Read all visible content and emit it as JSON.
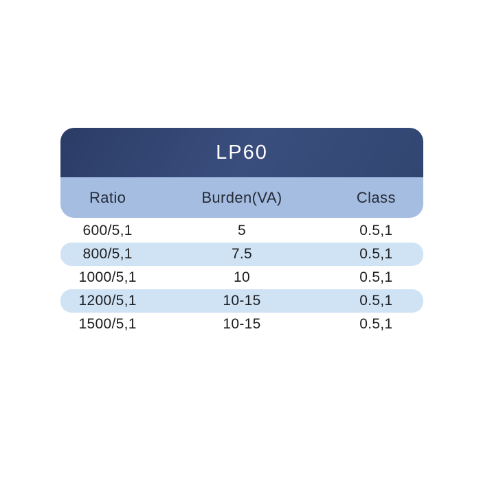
{
  "table": {
    "title": "LP60",
    "columns": [
      "Ratio",
      "Burden(VA)",
      "Class"
    ],
    "rows": [
      [
        "600/5,1",
        "5",
        "0.5,1"
      ],
      [
        "800/5,1",
        "7.5",
        "0.5,1"
      ],
      [
        "1000/5,1",
        "10",
        "0.5,1"
      ],
      [
        "1200/5,1",
        "10-15",
        "0.5,1"
      ],
      [
        "1500/5,1",
        "10-15",
        "0.5,1"
      ]
    ]
  },
  "colors": {
    "page_bg": "#ffffff",
    "header_gradient_start": "#2b3c66",
    "header_gradient_mid": "#3a4e7e",
    "header_gradient_end": "#324672",
    "subheader_bg": "#a6bde2",
    "stripe_bg": "#cfe3f5",
    "title_text": "#ffffff",
    "header_text": "#242a36",
    "body_text": "#1c1c1e"
  },
  "chart_data": {
    "type": "table",
    "title": "LP60",
    "columns": [
      "Ratio",
      "Burden(VA)",
      "Class"
    ],
    "rows": [
      [
        "600/5,1",
        "5",
        "0.5,1"
      ],
      [
        "800/5,1",
        "7.5",
        "0.5,1"
      ],
      [
        "1000/5,1",
        "10",
        "0.5,1"
      ],
      [
        "1200/5,1",
        "10-15",
        "0.5,1"
      ],
      [
        "1500/5,1",
        "10-15",
        "0.5,1"
      ]
    ]
  }
}
